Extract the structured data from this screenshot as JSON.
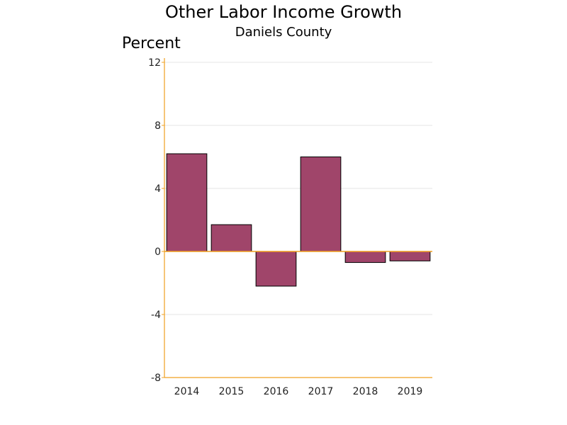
{
  "chart_data": {
    "type": "bar",
    "title": "Other Labor Income Growth",
    "subtitle": "Daniels County",
    "ylabel": "Percent",
    "xlabel": "",
    "categories": [
      "2014",
      "2015",
      "2016",
      "2017",
      "2018",
      "2019"
    ],
    "values": [
      6.2,
      1.7,
      -2.2,
      6.0,
      -0.7,
      -0.6
    ],
    "ylim": [
      -8,
      12
    ],
    "yticks": [
      -8,
      -4,
      0,
      4,
      8,
      12
    ],
    "ytick_labels": [
      "-8",
      "-4",
      "0",
      "4",
      "8",
      "12"
    ],
    "grid": true,
    "legend": "none"
  },
  "colors": {
    "bar_fill": "#a0456a",
    "bar_stroke": "#000000",
    "axis": "#f0a020",
    "grid": "#e4e4e4"
  }
}
